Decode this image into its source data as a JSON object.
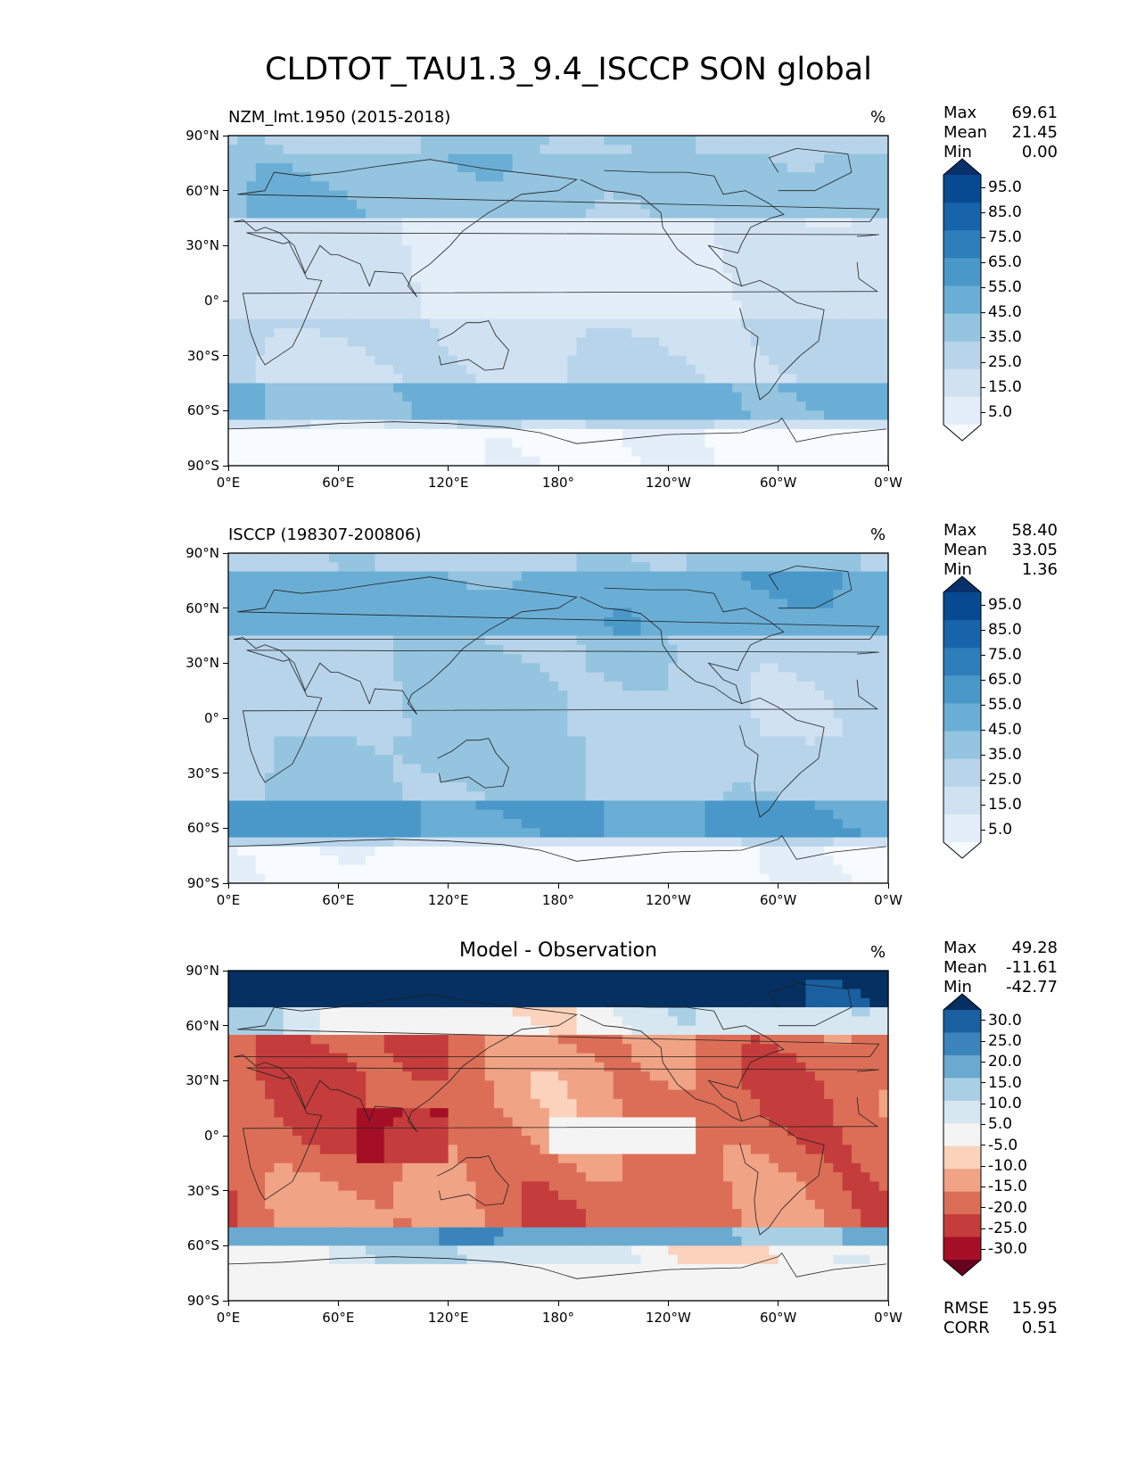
{
  "title": "CLDTOT_TAU1.3_9.4_ISCCP SON global",
  "lat_ticks": [
    "90°N",
    "60°N",
    "30°N",
    "0°",
    "30°S",
    "60°S",
    "90°S"
  ],
  "lon_ticks": [
    "0°E",
    "60°E",
    "120°E",
    "180°",
    "120°W",
    "60°W",
    "0°W"
  ],
  "stat_labels": {
    "max": "Max",
    "mean": "Mean",
    "min": "Min",
    "rmse": "RMSE",
    "corr": "CORR"
  },
  "chart_data": [
    {
      "type": "heatmap",
      "id": "model",
      "title": "NZM_lmt.1950 (2015-2018)",
      "title_align": "left",
      "units": "%",
      "stats": {
        "max": "69.61",
        "mean": "21.45",
        "min": "0.00"
      },
      "colorbar": {
        "labels": [
          "95.0",
          "85.0",
          "75.0",
          "65.0",
          "55.0",
          "45.0",
          "35.0",
          "25.0",
          "15.0",
          "5.0"
        ],
        "colors": [
          "#f7fbff",
          "#e3eef9",
          "#d0e1f2",
          "#b7d4ea",
          "#94c4df",
          "#6aaed6",
          "#4a98c9",
          "#2e7ebc",
          "#1764ab",
          "#084a91",
          "#08306b"
        ],
        "extend": "both"
      },
      "xlim": [
        0,
        360
      ],
      "ylim": [
        -90,
        90
      ]
    },
    {
      "type": "heatmap",
      "id": "obs",
      "title": "ISCCP (198307-200806)",
      "title_align": "left",
      "units": "%",
      "stats": {
        "max": "58.40",
        "mean": "33.05",
        "min": "1.36"
      },
      "colorbar": {
        "labels": [
          "95.0",
          "85.0",
          "75.0",
          "65.0",
          "55.0",
          "45.0",
          "35.0",
          "25.0",
          "15.0",
          "5.0"
        ],
        "colors": [
          "#f7fbff",
          "#e3eef9",
          "#d0e1f2",
          "#b7d4ea",
          "#94c4df",
          "#6aaed6",
          "#4a98c9",
          "#2e7ebc",
          "#1764ab",
          "#084a91",
          "#08306b"
        ],
        "extend": "both"
      },
      "xlim": [
        0,
        360
      ],
      "ylim": [
        -90,
        90
      ]
    },
    {
      "type": "heatmap",
      "id": "diff",
      "title": "Model - Observation",
      "title_align": "center",
      "units": "%",
      "stats": {
        "max": "49.28",
        "mean": "-11.61",
        "min": "-42.77"
      },
      "metrics": {
        "rmse": "15.95",
        "corr": "0.51"
      },
      "colorbar": {
        "labels": [
          "30.0",
          "25.0",
          "20.0",
          "15.0",
          "10.0",
          "5.0",
          "-5.0",
          "-10.0",
          "-15.0",
          "-20.0",
          "-25.0",
          "-30.0"
        ],
        "colors": [
          "#67001f",
          "#a50f26",
          "#c43c3c",
          "#dc6e57",
          "#f0a385",
          "#fbd2bc",
          "#f4f4f4",
          "#d7e7f1",
          "#a9cfe5",
          "#6aa9d0",
          "#3a84bb",
          "#1a5fa0",
          "#053061"
        ],
        "extend": "both"
      },
      "xlim": [
        0,
        360
      ],
      "ylim": [
        -90,
        90
      ]
    }
  ]
}
